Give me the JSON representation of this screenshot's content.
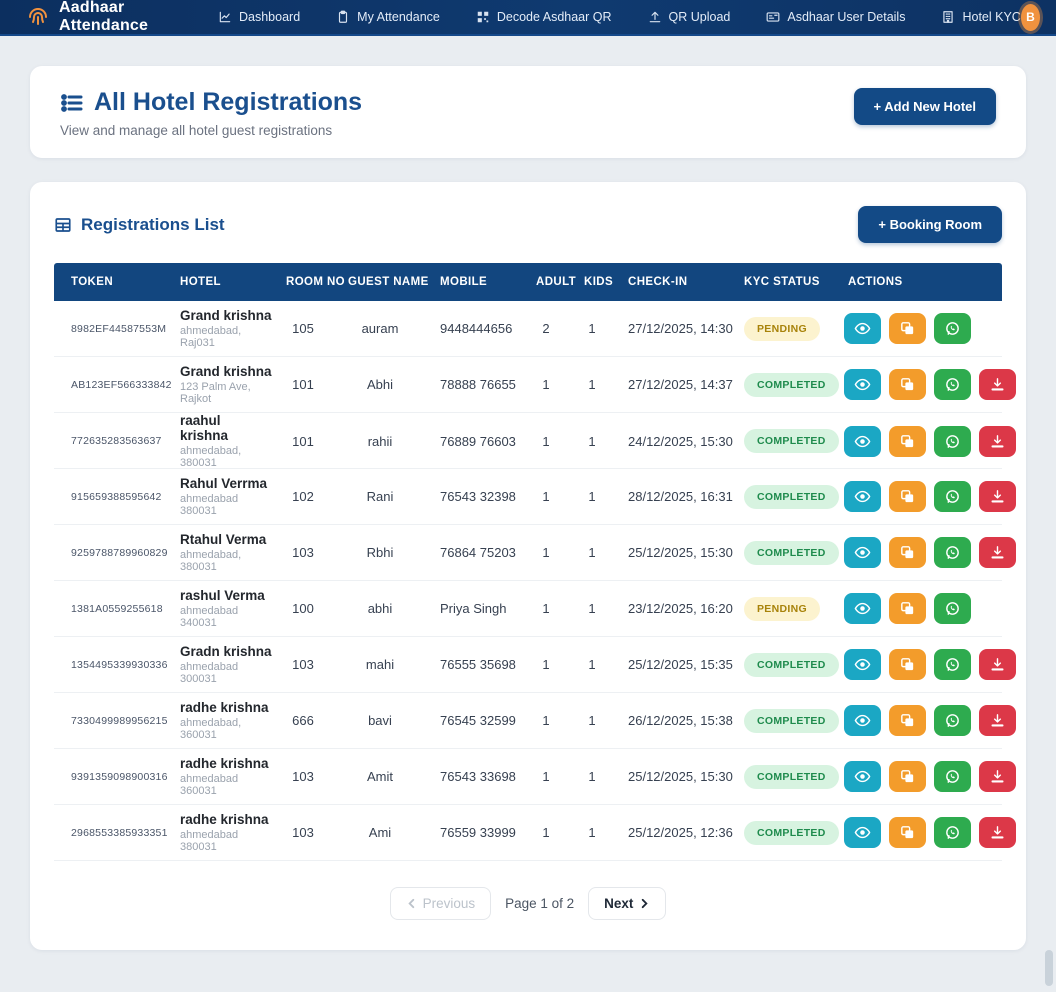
{
  "navbar": {
    "brand": "Aadhaar Attendance",
    "items": [
      {
        "label": "Dashboard",
        "icon": "chart-line-icon"
      },
      {
        "label": "My Attendance",
        "icon": "clipboard-icon"
      },
      {
        "label": "Decode Asdhaar QR",
        "icon": "qr-code-icon"
      },
      {
        "label": "QR Upload",
        "icon": "upload-icon"
      },
      {
        "label": "Asdhaar User Details",
        "icon": "id-card-icon"
      },
      {
        "label": "Hotel KYC",
        "icon": "building-icon"
      }
    ],
    "avatar_initial": "B"
  },
  "header": {
    "title": "All Hotel Registrations",
    "subtitle": "View and manage all hotel guest registrations",
    "add_hotel_label": "+ Add New Hotel"
  },
  "registrations": {
    "title": "Registrations List",
    "booking_label": "+ Booking Room",
    "columns": [
      "TOKEN",
      "HOTEL",
      "ROOM NO",
      "GUEST NAME",
      "MOBILE",
      "ADULT",
      "KIDS",
      "CHECK-IN",
      "KYC STATUS",
      "ACTIONS"
    ],
    "rows": [
      {
        "token": "8982EF44587553M",
        "hotel": "Grand krishna",
        "hotel_sub": "ahmedabad, Raj031",
        "room": "105",
        "guest": "auram",
        "mobile": "9448444656",
        "adult": "2",
        "kids": "1",
        "checkin": "27/12/2025, 14:30",
        "status": "PENDING",
        "actions": [
          "view",
          "copy",
          "whatsapp"
        ]
      },
      {
        "token": "AB123EF566333842",
        "hotel": "Grand krishna",
        "hotel_sub": "123 Palm Ave, Rajkot",
        "room": "101",
        "guest": "Abhi",
        "mobile": "78888 76655",
        "adult": "1",
        "kids": "1",
        "checkin": "27/12/2025, 14:37",
        "status": "COMPLETED",
        "actions": [
          "view",
          "copy",
          "whatsapp",
          "download"
        ]
      },
      {
        "token": "772635283563637",
        "hotel": "raahul krishna",
        "hotel_sub": "ahmedabad, 380031",
        "room": "101",
        "guest": "rahii",
        "mobile": "76889 76603",
        "adult": "1",
        "kids": "1",
        "checkin": "24/12/2025, 15:30",
        "status": "COMPLETED",
        "actions": [
          "view",
          "copy",
          "whatsapp",
          "download"
        ]
      },
      {
        "token": "915659388595642",
        "hotel": "Rahul Verrma",
        "hotel_sub": "ahmedabad 380031",
        "room": "102",
        "guest": "Rani",
        "mobile": "76543 32398",
        "adult": "1",
        "kids": "1",
        "checkin": "28/12/2025, 16:31",
        "status": "COMPLETED",
        "actions": [
          "view",
          "copy",
          "whatsapp",
          "download"
        ]
      },
      {
        "token": "9259788789960829",
        "hotel": "Rtahul Verma",
        "hotel_sub": "ahmedabad, 380031",
        "room": "103",
        "guest": "Rbhi",
        "mobile": "76864 75203",
        "adult": "1",
        "kids": "1",
        "checkin": "25/12/2025, 15:30",
        "status": "COMPLETED",
        "actions": [
          "view",
          "copy",
          "whatsapp",
          "download"
        ]
      },
      {
        "token": "1381A0559255618",
        "hotel": "rashul Verma",
        "hotel_sub": "ahmedabad 340031",
        "room": "100",
        "guest": "abhi",
        "mobile": "Priya Singh",
        "adult": "1",
        "kids": "1",
        "checkin": "23/12/2025, 16:20",
        "status": "PENDING",
        "actions": [
          "view",
          "copy",
          "whatsapp"
        ]
      },
      {
        "token": "1354495339930336",
        "hotel": "Gradn krishna",
        "hotel_sub": "ahmedabad 300031",
        "room": "103",
        "guest": "mahi",
        "mobile": "76555 35698",
        "adult": "1",
        "kids": "1",
        "checkin": "25/12/2025, 15:35",
        "status": "COMPLETED",
        "actions": [
          "view",
          "copy",
          "whatsapp",
          "download"
        ]
      },
      {
        "token": "7330499989956215",
        "hotel": "radhe krishna",
        "hotel_sub": "ahmedabad, 360031",
        "room": "666",
        "guest": "bavi",
        "mobile": "76545 32599",
        "adult": "1",
        "kids": "1",
        "checkin": "26/12/2025, 15:38",
        "status": "COMPLETED",
        "actions": [
          "view",
          "copy",
          "whatsapp",
          "download"
        ]
      },
      {
        "token": "9391359098900316",
        "hotel": "radhe krishna",
        "hotel_sub": "ahmedabad 360031",
        "room": "103",
        "guest": "Amit",
        "mobile": "76543 33698",
        "adult": "1",
        "kids": "1",
        "checkin": "25/12/2025, 15:30",
        "status": "COMPLETED",
        "actions": [
          "view",
          "copy",
          "whatsapp",
          "download"
        ]
      },
      {
        "token": "2968553385933351",
        "hotel": "radhe krishna",
        "hotel_sub": "ahmedabad 380031",
        "room": "103",
        "guest": "Ami",
        "mobile": "76559 33999",
        "adult": "1",
        "kids": "1",
        "checkin": "25/12/2025, 12:36",
        "status": "COMPLETED",
        "actions": [
          "view",
          "copy",
          "whatsapp",
          "download"
        ]
      }
    ],
    "pagination": {
      "previous_label": "Previous",
      "page_info": "Page 1 of 2",
      "next_label": "Next"
    }
  },
  "colors": {
    "navbar_bg": "#0d3263",
    "accent_blue": "#134a86",
    "title_blue": "#1a4f8e",
    "avatar_orange": "#f0923f",
    "pending_bg": "#fcf3cf",
    "pending_text": "#a8830a",
    "completed_bg": "#d7f3e0",
    "completed_text": "#1f8b4d",
    "action_view": "#1ba7c4",
    "action_copy": "#f39c2b",
    "action_whatsapp": "#2eab4f",
    "action_download": "#dc3848"
  }
}
